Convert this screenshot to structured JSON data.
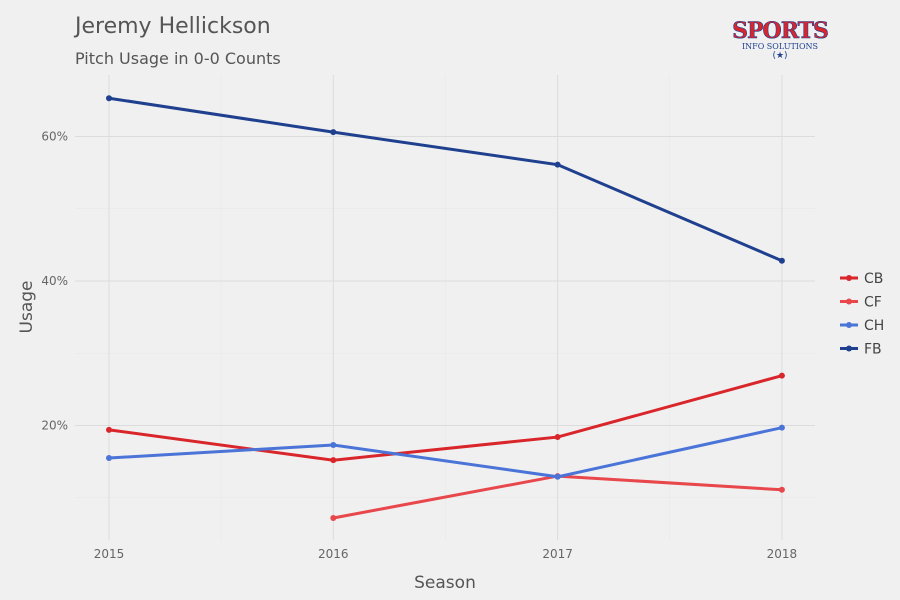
{
  "title": "Jeremy Hellickson",
  "subtitle": "Pitch Usage in 0-0 Counts",
  "logo": {
    "line1": "SPORTS",
    "line2": "INFO SOLUTIONS",
    "star": "★"
  },
  "chart_data": {
    "type": "line",
    "title": "Jeremy Hellickson",
    "subtitle": "Pitch Usage in 0-0 Counts",
    "xlabel": "Season",
    "ylabel": "Usage",
    "x": [
      2015,
      2016,
      2017,
      2018
    ],
    "x_tick_labels": [
      "2015",
      "2016",
      "2017",
      "2018"
    ],
    "y_ticks": [
      20,
      40,
      60
    ],
    "y_tick_labels": [
      "20%",
      "40%",
      "60%"
    ],
    "ylim": [
      5,
      67
    ],
    "grid": true,
    "legend_position": "right",
    "series": [
      {
        "name": "CB",
        "color": "#d9262b",
        "values": [
          19.4,
          15.2,
          18.4,
          26.9
        ]
      },
      {
        "name": "CF",
        "color": "#e8474b",
        "values": [
          null,
          7.2,
          13.0,
          11.1
        ]
      },
      {
        "name": "CH",
        "color": "#4a74d8",
        "values": [
          15.5,
          17.3,
          12.9,
          19.7
        ]
      },
      {
        "name": "FB",
        "color": "#1f3f8f",
        "values": [
          65.3,
          60.6,
          56.1,
          42.8
        ]
      }
    ]
  }
}
